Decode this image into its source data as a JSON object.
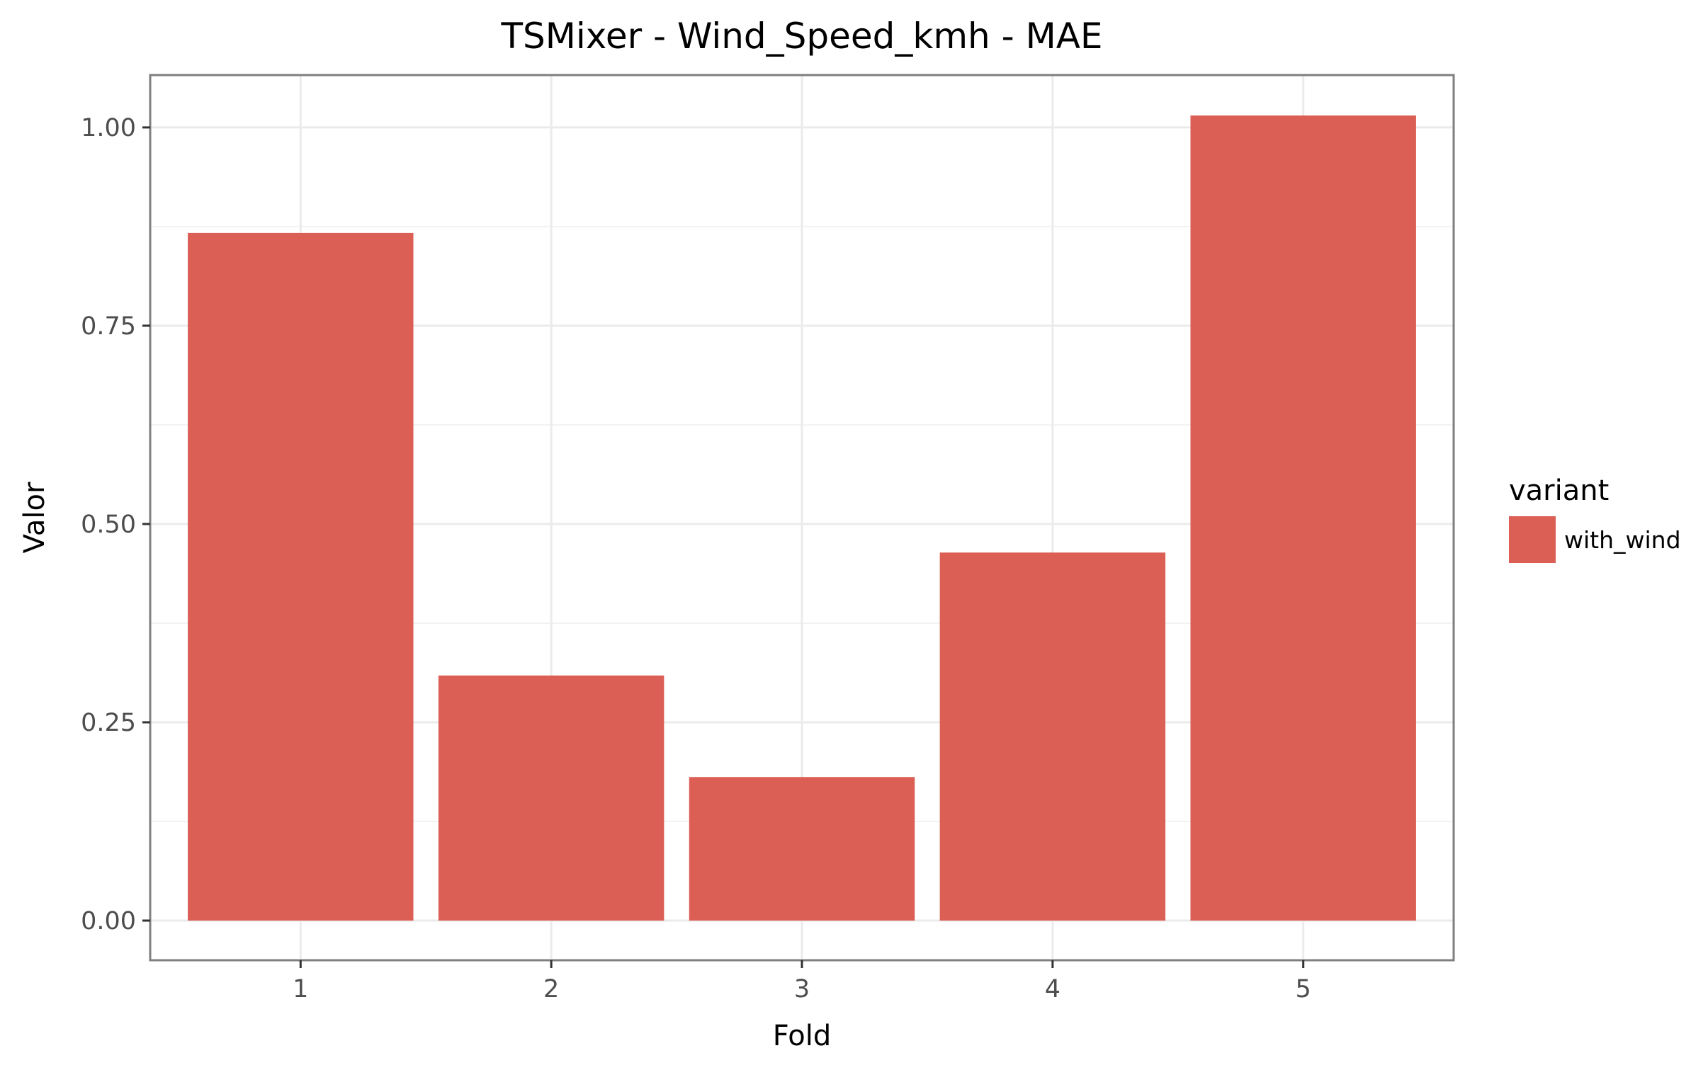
{
  "chart_data": {
    "type": "bar",
    "title": "TSMixer - Wind_Speed_kmh - MAE",
    "xlabel": "Fold",
    "ylabel": "Valor",
    "categories": [
      "1",
      "2",
      "3",
      "4",
      "5"
    ],
    "series": [
      {
        "name": "with_wind",
        "values": [
          0.867,
          0.309,
          0.181,
          0.464,
          1.015
        ],
        "color": "#dc5f56"
      }
    ],
    "y_ticks": [
      0.0,
      0.25,
      0.5,
      0.75,
      1.0
    ],
    "y_tick_labels": [
      "0.00",
      "0.25",
      "0.50",
      "0.75",
      "1.00"
    ],
    "ylim": [
      -0.05,
      1.066
    ],
    "grid": true,
    "legend": {
      "title": "variant",
      "placement": "right"
    }
  }
}
